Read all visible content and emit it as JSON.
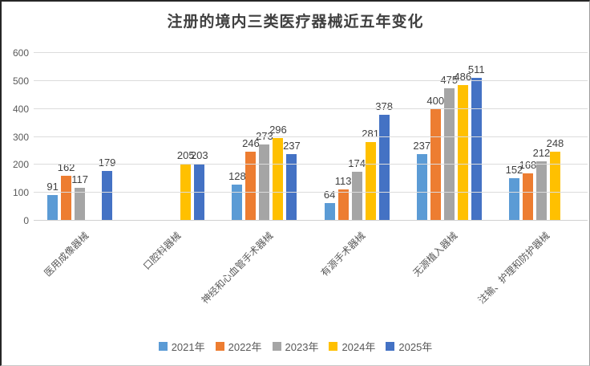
{
  "chart_data": {
    "type": "bar",
    "title": "注册的境内三类医疗器械近五年变化",
    "categories": [
      "医用成像器械",
      "口腔科器械",
      "神经和心血管手术器械",
      "有源手术器械",
      "无源植入器械",
      "注输、护理和防护器械"
    ],
    "series": [
      {
        "name": "2021年",
        "color": "#5B9BD5",
        "values": [
          91,
          null,
          128,
          64,
          237,
          152
        ]
      },
      {
        "name": "2022年",
        "color": "#ED7D31",
        "values": [
          162,
          null,
          246,
          113,
          400,
          168
        ]
      },
      {
        "name": "2023年",
        "color": "#A5A5A5",
        "values": [
          117,
          null,
          273,
          174,
          475,
          212
        ]
      },
      {
        "name": "2024年",
        "color": "#FFC000",
        "values": [
          null,
          205,
          296,
          281,
          486,
          248
        ]
      },
      {
        "name": "2025年",
        "color": "#4472C4",
        "values": [
          179,
          203,
          237,
          378,
          511,
          null
        ]
      }
    ],
    "ylim": [
      0,
      600
    ],
    "yticks": [
      0,
      100,
      200,
      300,
      400,
      500,
      600
    ],
    "grid": true,
    "data_labels": true,
    "legend_position": "bottom",
    "title_color": "#404040",
    "data_label_color": "#404040",
    "axis_label_color": "#595959",
    "gridline_color": "#DCDCDC"
  }
}
